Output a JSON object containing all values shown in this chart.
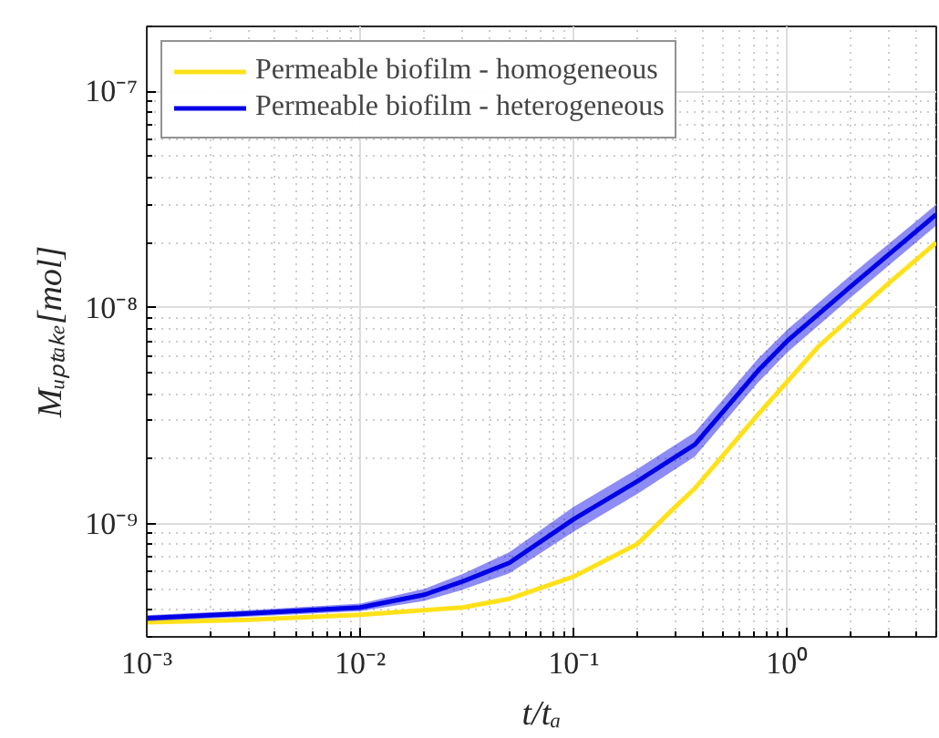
{
  "chart_data": {
    "type": "line",
    "xlabel": "t/tₐ",
    "ylabel": "Mᵤₚₜₐₖₑ[mol]",
    "log": "xy",
    "xlim": [
      0.001,
      5
    ],
    "ylim": [
      3e-10,
      2e-07
    ],
    "xticks": [
      {
        "value": 0.001,
        "label": "10⁻³"
      },
      {
        "value": 0.01,
        "label": "10⁻²"
      },
      {
        "value": 0.1,
        "label": "10⁻¹"
      },
      {
        "value": 1,
        "label": "10⁰"
      }
    ],
    "yticks": [
      {
        "value": 1e-09,
        "label": "10⁻⁹"
      },
      {
        "value": 1e-08,
        "label": "10⁻⁸"
      },
      {
        "value": 1e-07,
        "label": "10⁻⁷"
      }
    ],
    "grid": true,
    "legend": "top left",
    "series": [
      {
        "name": "Permeable biofilm - homogeneous",
        "color": "#ffe11a",
        "x": [
          0.001,
          0.003,
          0.01,
          0.03,
          0.05,
          0.1,
          0.2,
          0.3,
          0.37,
          0.73,
          1.4,
          3,
          5
        ],
        "values": [
          3.5e-10,
          3.6e-10,
          3.8e-10,
          4.1e-10,
          4.5e-10,
          5.7e-10,
          8.1e-10,
          1.2e-09,
          1.46e-09,
          3.2e-09,
          6.6e-09,
          1.3e-08,
          2e-08
        ]
      },
      {
        "name": "Permeable biofilm - heterogeneous",
        "color": "#0000e6",
        "x": [
          0.001,
          0.003,
          0.01,
          0.02,
          0.03,
          0.05,
          0.1,
          0.2,
          0.37,
          0.73,
          1,
          2,
          5
        ],
        "values": [
          3.66e-10,
          3.85e-10,
          4.1e-10,
          4.7e-10,
          5.4e-10,
          6.6e-10,
          1.05e-09,
          1.58e-09,
          2.33e-09,
          5.1e-09,
          7e-09,
          1.26e-08,
          2.7e-08
        ],
        "lower": [
          3.55e-10,
          3.72e-10,
          3.95e-10,
          4.4e-10,
          4.95e-10,
          5.9e-10,
          9.2e-10,
          1.38e-09,
          2.05e-09,
          4.5e-09,
          6.2e-09,
          1.12e-08,
          2.4e-08
        ],
        "upper": [
          3.78e-10,
          3.98e-10,
          4.28e-10,
          5e-10,
          5.85e-10,
          7.4e-10,
          1.2e-09,
          1.8e-09,
          2.65e-09,
          5.8e-09,
          7.9e-09,
          1.42e-08,
          3e-08
        ]
      }
    ]
  }
}
